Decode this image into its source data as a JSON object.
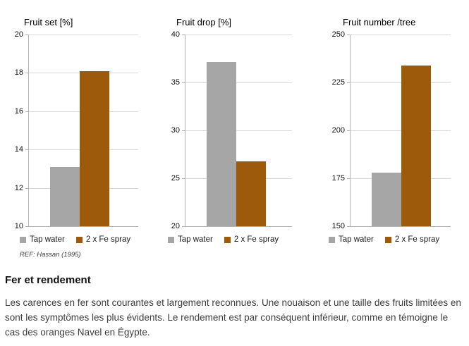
{
  "chart_data": [
    {
      "type": "bar",
      "title": "Fruit set [%]",
      "categories": [
        "Tap water",
        "2 x Fe spray"
      ],
      "values": [
        13.1,
        18.1
      ],
      "colors": [
        "#a6a6a6",
        "#9c5a0a"
      ],
      "ylim": [
        10,
        20
      ],
      "yticks": [
        10,
        12,
        14,
        16,
        18,
        20
      ],
      "xlabel": "",
      "ylabel": "",
      "grid": true,
      "legend_position": "bottom"
    },
    {
      "type": "bar",
      "title": "Fruit drop [%]",
      "categories": [
        "Tap water",
        "2 x Fe spray"
      ],
      "values": [
        37.1,
        26.8
      ],
      "colors": [
        "#a6a6a6",
        "#9c5a0a"
      ],
      "ylim": [
        20,
        40
      ],
      "yticks": [
        20,
        25,
        30,
        35,
        40
      ],
      "xlabel": "",
      "ylabel": "",
      "grid": true,
      "legend_position": "bottom"
    },
    {
      "type": "bar",
      "title": "Fruit number /tree",
      "categories": [
        "Tap water",
        "2 x Fe spray"
      ],
      "values": [
        178,
        234
      ],
      "colors": [
        "#a6a6a6",
        "#9c5a0a"
      ],
      "ylim": [
        150,
        250
      ],
      "yticks": [
        150,
        175,
        200,
        225,
        250
      ],
      "xlabel": "",
      "ylabel": "",
      "grid": true,
      "legend_position": "bottom"
    }
  ],
  "source_note": "REF: Hassan (1995)",
  "section": {
    "heading": "Fer et rendement",
    "body": "Les carences en fer sont courantes et largement reconnues. Une nouaison et une taille des fruits limitées en sont les symptômes les plus évidents. Le rendement est par conséquent inférieur, comme en témoigne le cas des oranges Navel en Égypte."
  },
  "colors": {
    "series_tap_water": "#a6a6a6",
    "series_fe_spray": "#9c5a0a",
    "gridline": "#d9d9d9",
    "axis_line": "#b3b3b3"
  }
}
